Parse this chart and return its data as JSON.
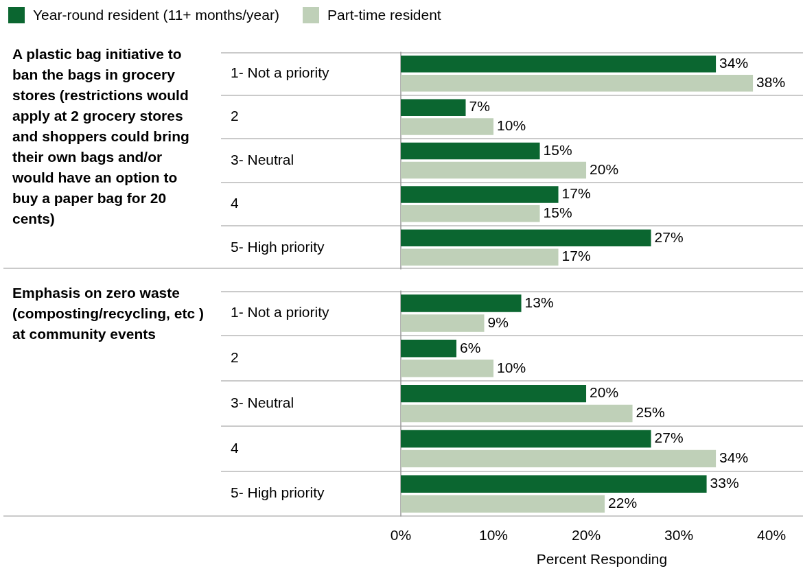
{
  "chart_data": [
    {
      "type": "bar",
      "orientation": "horizontal",
      "title": "A plastic bag initiative to ban the bags in grocery stores (restrictions would apply at 2 grocery stores and shoppers could bring their own bags and/or would have an option to buy a paper bag for 20 cents)",
      "categories": [
        "1- Not a priority",
        "2",
        "3- Neutral",
        "4",
        "5- High priority"
      ],
      "series": [
        {
          "name": "Year-round resident (11+ months/year)",
          "color": "#0b6630",
          "values": [
            34,
            7,
            15,
            17,
            27
          ],
          "value_labels": [
            "34%",
            "7%",
            "15%",
            "17%",
            "27%"
          ]
        },
        {
          "name": "Part-time resident",
          "color": "#bfd0b8",
          "values": [
            38,
            10,
            20,
            15,
            17
          ],
          "value_labels": [
            "38%",
            "10%",
            "20%",
            "15%",
            "17%"
          ]
        }
      ],
      "xlim": [
        0,
        43.4
      ],
      "tick_labels": "y",
      "grid": "y",
      "legend": "top left"
    },
    {
      "type": "bar",
      "orientation": "horizontal",
      "title": "Emphasis on zero waste (composting/recycling, etc ) at community events",
      "categories": [
        "1- Not a priority",
        "2",
        "3- Neutral",
        "4",
        "5- High priority"
      ],
      "series": [
        {
          "color": "#0b6630",
          "values": [
            13,
            6,
            20,
            27,
            33
          ],
          "value_labels": [
            "13%",
            "6%",
            "20%",
            "27%",
            "33%"
          ]
        },
        {
          "color": "#bfd0b8",
          "values": [
            9,
            10,
            25,
            34,
            22
          ],
          "value_labels": [
            "9%",
            "10%",
            "25%",
            "34%",
            "22%"
          ]
        }
      ],
      "xlim": [
        0,
        43.4
      ],
      "xticks": [
        {
          "value": 0,
          "label": "0%"
        },
        {
          "value": 10,
          "label": "10%"
        },
        {
          "value": 20,
          "label": "20%"
        },
        {
          "value": 30,
          "label": "30%"
        },
        {
          "value": 40,
          "label": "40%"
        }
      ],
      "xlabel": "Percent Responding",
      "grid": "y"
    }
  ]
}
